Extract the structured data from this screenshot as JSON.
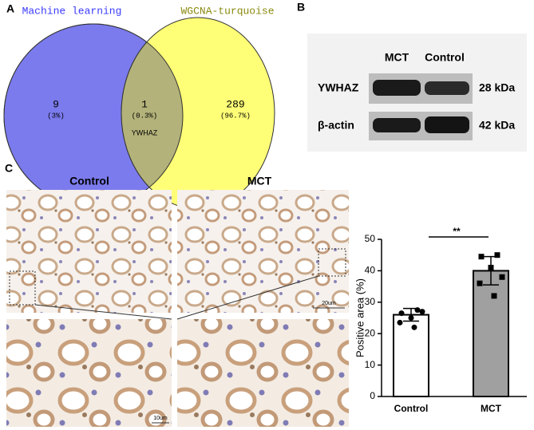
{
  "panels": {
    "a": {
      "label": "A",
      "sets": [
        {
          "name": "Machine learning",
          "count": "9",
          "percent": "(3%)"
        },
        {
          "name": "WGCNA-turquoise",
          "count": "289",
          "percent": "(96.7%)"
        }
      ],
      "overlap": {
        "count": "1",
        "percent": "(0.3%)",
        "gene": "YWHAZ"
      }
    },
    "b": {
      "label": "B",
      "lanes": [
        "MCT",
        "Control"
      ],
      "rows": [
        {
          "protein": "YWHAZ",
          "size": "28 kDa"
        },
        {
          "protein": "β-actin",
          "size": "42 kDa"
        }
      ]
    },
    "c": {
      "label": "C",
      "images": [
        "Control",
        "MCT"
      ],
      "scale_bars": [
        "20um",
        "10um"
      ]
    }
  },
  "chart_data": {
    "type": "bar",
    "categories": [
      "Control",
      "MCT"
    ],
    "values": [
      26,
      40
    ],
    "errors": [
      2,
      4.5
    ],
    "points": [
      [
        26.5,
        27.5,
        27,
        23.5,
        22,
        25
      ],
      [
        44.5,
        45,
        38,
        36,
        32,
        41
      ]
    ],
    "ylabel": "Positive area (%)",
    "ylim": [
      0,
      50
    ],
    "yticks": [
      0,
      10,
      20,
      30,
      40,
      50
    ],
    "significance": "**",
    "colors": [
      "#ffffff",
      "#a0a0a0"
    ]
  }
}
